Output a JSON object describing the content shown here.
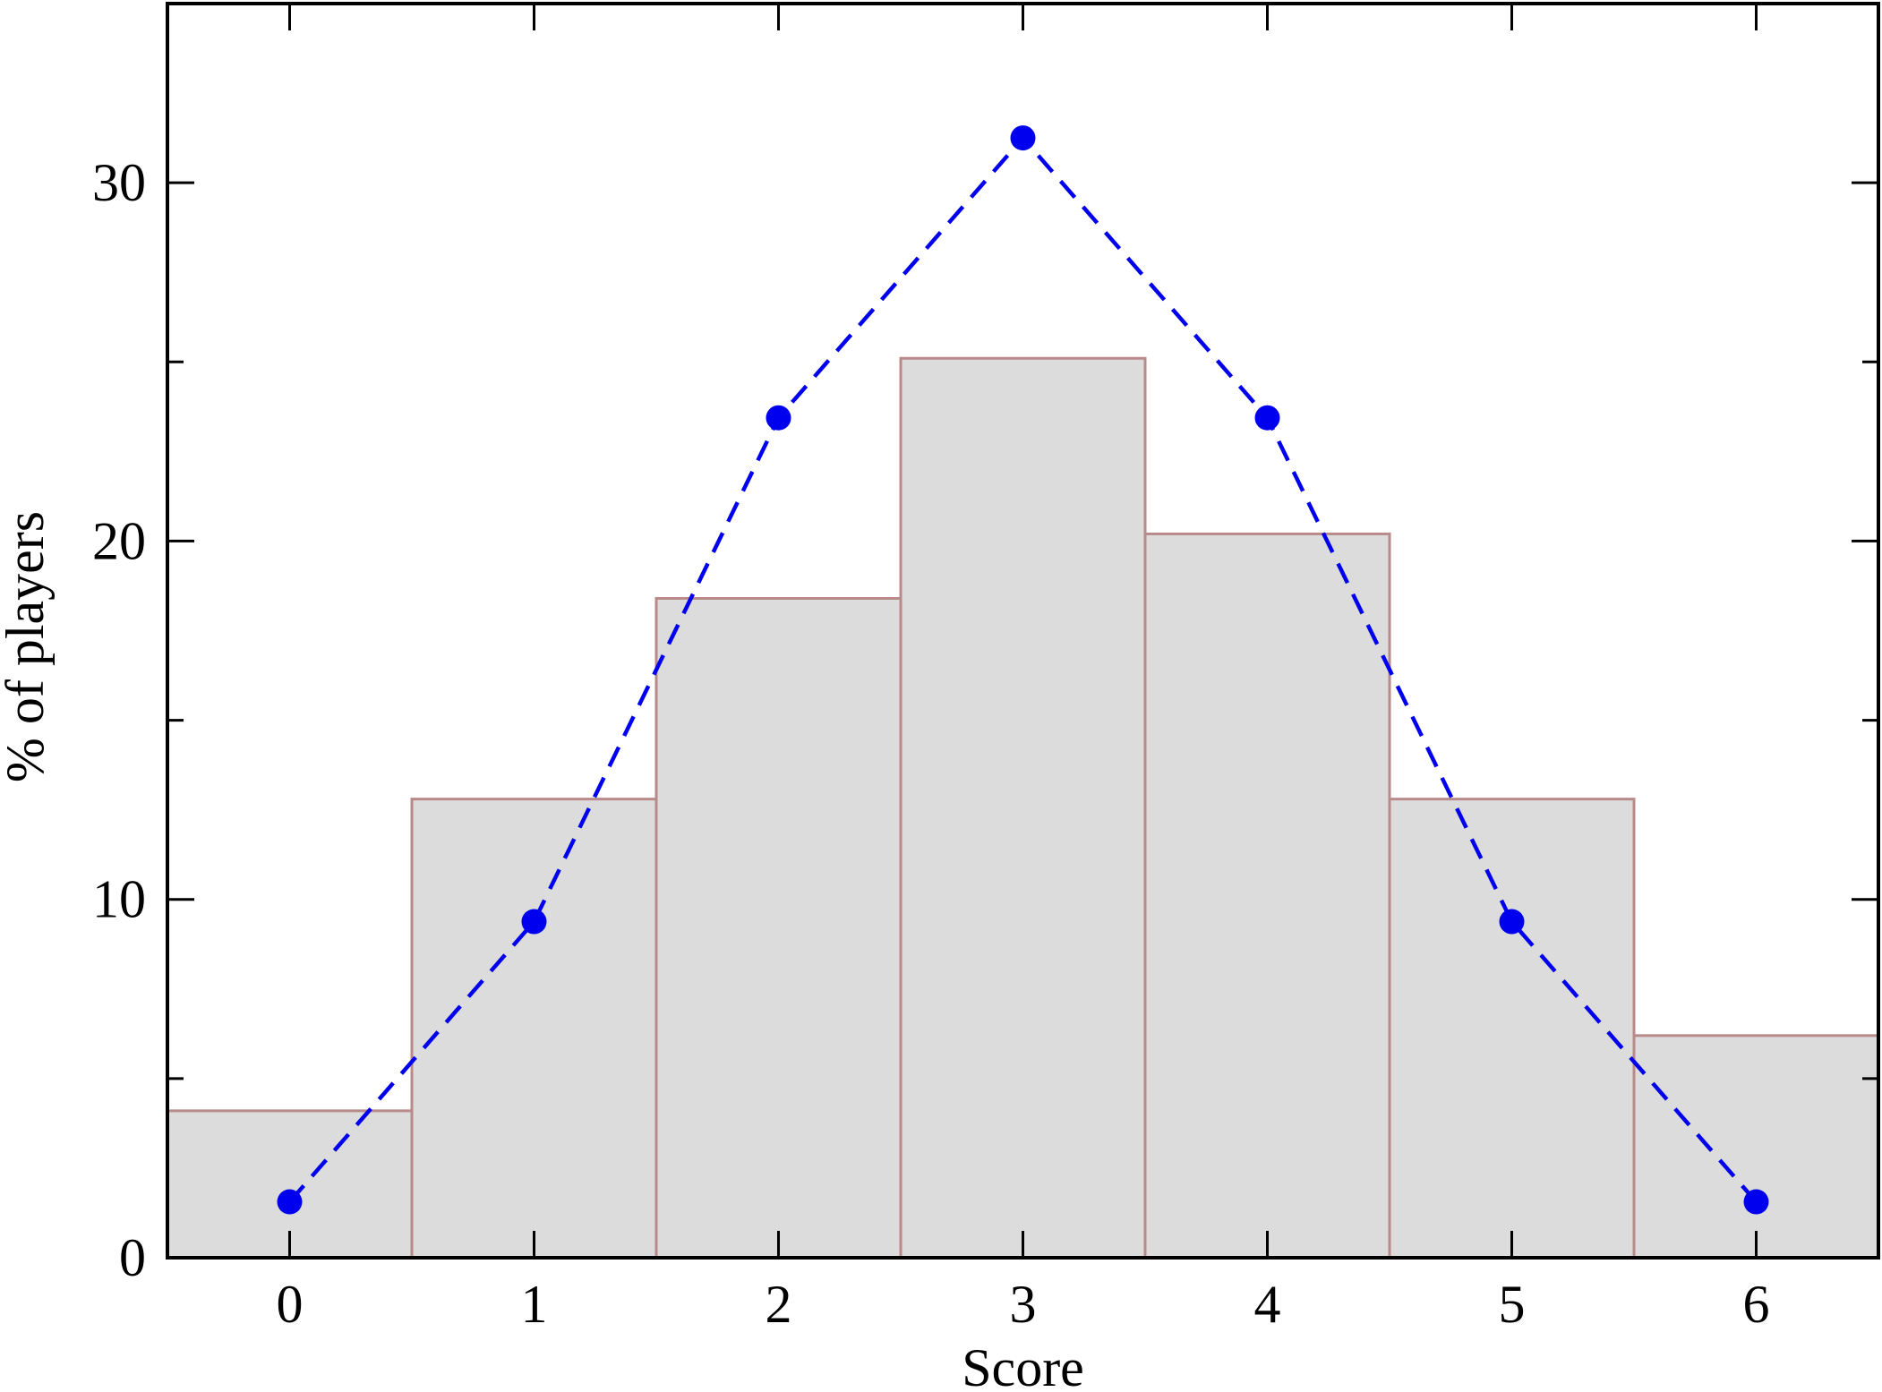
{
  "chart_data": {
    "type": "bar",
    "xlabel": "Score",
    "ylabel": "% of players",
    "xlim": [
      -0.5,
      6.5
    ],
    "ylim": [
      0,
      35
    ],
    "x_ticks": [
      "0",
      "1",
      "2",
      "3",
      "4",
      "5",
      "6"
    ],
    "y_ticks": [
      "0",
      "10",
      "20",
      "30"
    ],
    "y_minor_ticks": [
      5,
      15,
      25
    ],
    "grid": false,
    "series": [
      {
        "kind": "bar",
        "x": [
          0,
          1,
          2,
          3,
          4,
          5,
          6
        ],
        "values": [
          4.1,
          12.8,
          18.4,
          25.1,
          20.2,
          12.8,
          6.2
        ],
        "fill": "#dcdcdc",
        "stroke": "#b88a8a"
      },
      {
        "kind": "line",
        "x": [
          0,
          1,
          2,
          3,
          4,
          5,
          6
        ],
        "values": [
          1.56,
          9.38,
          23.44,
          31.25,
          23.44,
          9.38,
          1.56
        ],
        "color": "#0000ee",
        "line_style": "dashed",
        "marker": "circle"
      }
    ]
  }
}
